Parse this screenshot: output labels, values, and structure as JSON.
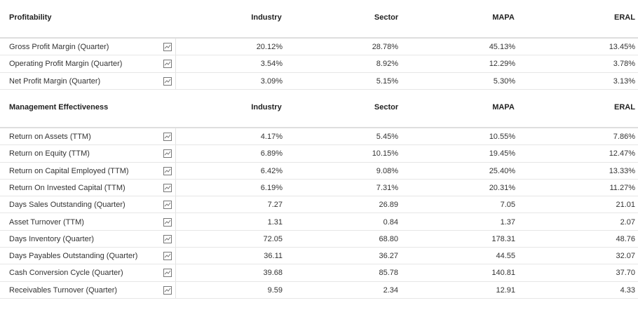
{
  "sections": [
    {
      "title": "Profitability",
      "columns": [
        "Industry",
        "Sector",
        "MAPA",
        "ERAL"
      ],
      "rows": [
        {
          "label": "Gross Profit Margin (Quarter)",
          "values": [
            "20.12%",
            "28.78%",
            "45.13%",
            "13.45%"
          ]
        },
        {
          "label": "Operating Profit Margin (Quarter)",
          "values": [
            "3.54%",
            "8.92%",
            "12.29%",
            "3.78%"
          ]
        },
        {
          "label": "Net Profit Margin (Quarter)",
          "values": [
            "3.09%",
            "5.15%",
            "5.30%",
            "3.13%"
          ]
        }
      ]
    },
    {
      "title": "Management Effectiveness",
      "columns": [
        "Industry",
        "Sector",
        "MAPA",
        "ERAL"
      ],
      "rows": [
        {
          "label": "Return on Assets (TTM)",
          "values": [
            "4.17%",
            "5.45%",
            "10.55%",
            "7.86%"
          ]
        },
        {
          "label": "Return on Equity (TTM)",
          "values": [
            "6.89%",
            "10.15%",
            "19.45%",
            "12.47%"
          ]
        },
        {
          "label": "Return on Capital Employed (TTM)",
          "values": [
            "6.42%",
            "9.08%",
            "25.40%",
            "13.33%"
          ]
        },
        {
          "label": "Return On Invested Capital (TTM)",
          "values": [
            "6.19%",
            "7.31%",
            "20.31%",
            "11.27%"
          ]
        },
        {
          "label": "Days Sales Outstanding (Quarter)",
          "values": [
            "7.27",
            "26.89",
            "7.05",
            "21.01"
          ]
        },
        {
          "label": "Asset Turnover (TTM)",
          "values": [
            "1.31",
            "0.84",
            "1.37",
            "2.07"
          ]
        },
        {
          "label": "Days Inventory (Quarter)",
          "values": [
            "72.05",
            "68.80",
            "178.31",
            "48.76"
          ]
        },
        {
          "label": "Days Payables Outstanding (Quarter)",
          "values": [
            "36.11",
            "36.27",
            "44.55",
            "32.07"
          ]
        },
        {
          "label": "Cash Conversion Cycle (Quarter)",
          "values": [
            "39.68",
            "85.78",
            "140.81",
            "37.70"
          ]
        },
        {
          "label": "Receivables Turnover (Quarter)",
          "values": [
            "9.59",
            "2.34",
            "12.91",
            "4.33"
          ]
        }
      ]
    }
  ]
}
